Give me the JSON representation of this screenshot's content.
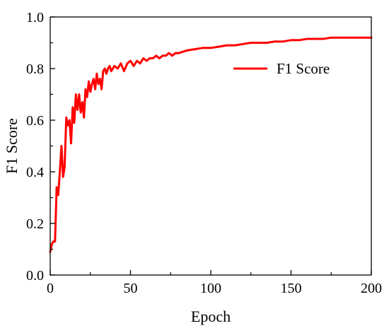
{
  "chart_data": {
    "type": "line",
    "title": "",
    "xlabel": "Epoch",
    "ylabel": "F1 Score",
    "xlim": [
      0,
      200
    ],
    "ylim": [
      0.0,
      1.0
    ],
    "x_ticks": [
      "0",
      "50",
      "100",
      "150",
      "200"
    ],
    "y_ticks": [
      "0.0",
      "0.2",
      "0.4",
      "0.6",
      "0.8",
      "1.0"
    ],
    "grid": false,
    "legend": {
      "position": "top-right",
      "entries": [
        "F1 Score"
      ]
    },
    "series": [
      {
        "name": "F1 Score",
        "color": "#ff0000",
        "x": [
          0,
          1,
          2,
          3,
          4,
          5,
          6,
          7,
          8,
          9,
          10,
          11,
          12,
          13,
          14,
          15,
          16,
          17,
          18,
          19,
          20,
          21,
          22,
          23,
          24,
          25,
          26,
          27,
          28,
          29,
          30,
          31,
          32,
          33,
          34,
          35,
          36,
          37,
          38,
          39,
          40,
          42,
          44,
          46,
          48,
          50,
          52,
          54,
          56,
          58,
          60,
          62,
          64,
          66,
          68,
          70,
          72,
          74,
          76,
          78,
          80,
          85,
          90,
          95,
          100,
          105,
          110,
          115,
          120,
          125,
          130,
          135,
          140,
          145,
          150,
          155,
          160,
          165,
          170,
          175,
          180,
          185,
          190,
          195,
          200
        ],
        "values": [
          0.09,
          0.12,
          0.13,
          0.13,
          0.34,
          0.31,
          0.4,
          0.5,
          0.38,
          0.42,
          0.61,
          0.58,
          0.6,
          0.51,
          0.65,
          0.59,
          0.7,
          0.64,
          0.7,
          0.63,
          0.67,
          0.61,
          0.72,
          0.69,
          0.75,
          0.71,
          0.74,
          0.76,
          0.72,
          0.78,
          0.74,
          0.76,
          0.72,
          0.79,
          0.8,
          0.78,
          0.8,
          0.81,
          0.79,
          0.8,
          0.81,
          0.8,
          0.82,
          0.79,
          0.82,
          0.83,
          0.81,
          0.83,
          0.82,
          0.84,
          0.83,
          0.84,
          0.84,
          0.85,
          0.84,
          0.85,
          0.85,
          0.86,
          0.85,
          0.86,
          0.86,
          0.87,
          0.875,
          0.88,
          0.88,
          0.885,
          0.89,
          0.89,
          0.895,
          0.9,
          0.9,
          0.9,
          0.905,
          0.905,
          0.91,
          0.91,
          0.915,
          0.915,
          0.915,
          0.92,
          0.92,
          0.92,
          0.92,
          0.92,
          0.92
        ]
      }
    ]
  }
}
